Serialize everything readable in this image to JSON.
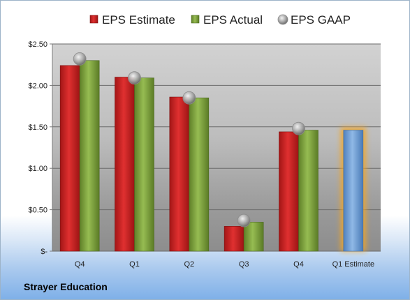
{
  "company": "Strayer Education",
  "colors": {
    "estimate": "#cc1f1f",
    "actual": "#7da23a",
    "gaap": "#a5a5a5",
    "forecast": "#6d9fd8",
    "forecast_glow": "#f5a623"
  },
  "chart_data": {
    "type": "bar",
    "categories": [
      "Q4",
      "Q1",
      "Q2",
      "Q3",
      "Q4",
      "Q1 Estimate"
    ],
    "series": [
      {
        "name": "EPS Estimate",
        "kind": "bar",
        "values": [
          2.24,
          2.1,
          1.86,
          0.3,
          1.44,
          1.46
        ]
      },
      {
        "name": "EPS Actual",
        "kind": "bar",
        "values": [
          2.3,
          2.09,
          1.85,
          0.35,
          1.46,
          null
        ]
      },
      {
        "name": "EPS GAAP",
        "kind": "marker",
        "values": [
          2.32,
          2.09,
          1.85,
          0.37,
          1.48,
          null
        ]
      }
    ],
    "ylim": [
      0,
      2.5
    ],
    "yticks": [
      0,
      0.5,
      1.0,
      1.5,
      2.0,
      2.5
    ],
    "ytick_labels": [
      "$-",
      "$0.50",
      "$1.00",
      "$1.50",
      "$2.00",
      "$2.50"
    ],
    "legend_position": "top",
    "grid": true,
    "last_category_forecast_only": true
  }
}
